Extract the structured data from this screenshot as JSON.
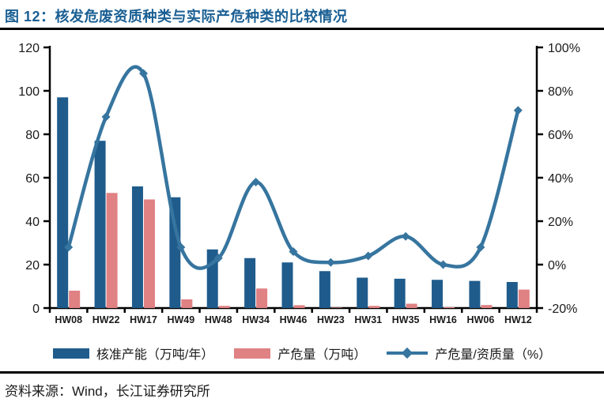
{
  "figure": {
    "title": "图 12：核发危废资质种类与实际产危种类的比较情况",
    "source": "资料来源：Wind，长江证券研究所"
  },
  "colors": {
    "title": "#1A5F93",
    "bar_capacity": "#1F5C8C",
    "bar_production": "#E08183",
    "line": "#36759F",
    "axis": "#000000",
    "text": "#1A1A1A"
  },
  "chart_data": {
    "type": "combo-bar-line",
    "title": "核发危废资质种类与实际产危种类的比较情况",
    "categories": [
      "HW08",
      "HW22",
      "HW17",
      "HW49",
      "HW48",
      "HW34",
      "HW46",
      "HW23",
      "HW31",
      "HW35",
      "HW16",
      "HW06",
      "HW12"
    ],
    "series": [
      {
        "name": "核准产能（万吨/年）",
        "type": "bar",
        "axis": "left",
        "values": [
          97,
          77,
          56,
          51,
          27,
          23,
          21,
          17,
          14,
          13.5,
          13,
          12.5,
          12
        ]
      },
      {
        "name": "产危量（万吨）",
        "type": "bar",
        "axis": "left",
        "values": [
          8,
          53,
          50,
          4,
          1,
          9,
          1.3,
          0.2,
          1,
          2,
          0.4,
          1.4,
          8.5
        ]
      },
      {
        "name": "产危量/资质量（%）",
        "type": "line",
        "axis": "right",
        "values": [
          8,
          68,
          88,
          8,
          3,
          38,
          6,
          1,
          4,
          13,
          0,
          8,
          71
        ]
      }
    ],
    "left_axis": {
      "min": 0,
      "max": 120,
      "tick_labels": [
        "0",
        "20",
        "40",
        "60",
        "80",
        "100",
        "120"
      ]
    },
    "right_axis": {
      "min": -20,
      "max": 100,
      "tick_labels": [
        "-20%",
        "0%",
        "20%",
        "40%",
        "60%",
        "80%",
        "100%"
      ]
    },
    "grid": false,
    "legend_position": "bottom"
  }
}
